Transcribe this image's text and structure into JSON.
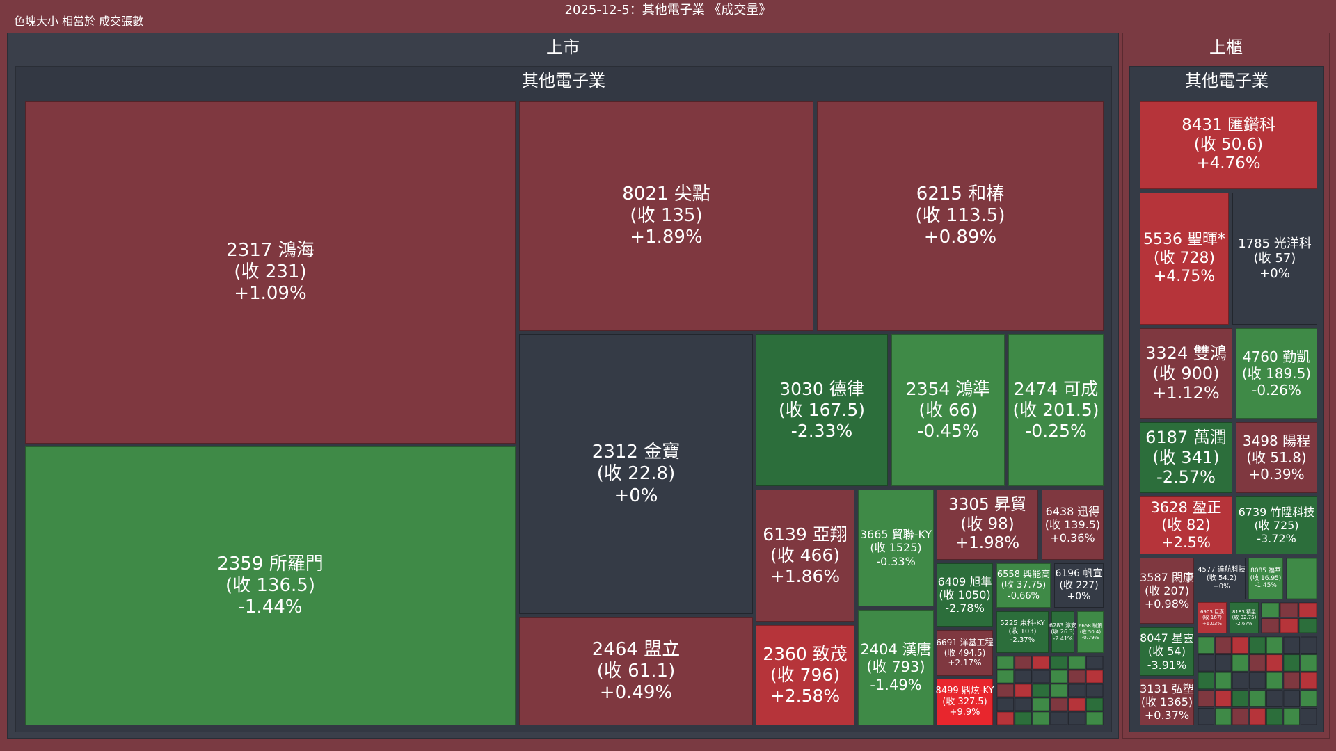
{
  "header": {
    "title": "2025-12-5：其他電子業 《成交量》",
    "size_note": "色塊大小 相當於 成交張數"
  },
  "colors": {
    "up": "#7f3840",
    "up_strong": "#b6343a",
    "up_max": "#e8262d",
    "down": "#2c6e3b",
    "down_light": "#3f8a47",
    "flat": "#353b46",
    "background": "#7a3a42",
    "market_panel": "#3a3f4a",
    "industry_panel": "#333843"
  },
  "markets": [
    {
      "name": "上市",
      "industry": "其他電子業"
    },
    {
      "name": "上櫃",
      "industry": "其他電子業"
    }
  ],
  "chart_data": {
    "type": "treemap",
    "title": "2025-12-5：其他電子業 《成交量》",
    "size_metric": "成交張數",
    "hierarchy": [
      "market",
      "industry",
      "stock"
    ],
    "groups": [
      {
        "market": "上市",
        "industry": "其他電子業",
        "stocks": [
          {
            "code": "2317",
            "name": "鴻海",
            "close": "231",
            "change": "+1.09%"
          },
          {
            "code": "2359",
            "name": "所羅門",
            "close": "136.5",
            "change": "-1.44%"
          },
          {
            "code": "8021",
            "name": "尖點",
            "close": "135",
            "change": "+1.89%"
          },
          {
            "code": "6215",
            "name": "和椿",
            "close": "113.5",
            "change": "+0.89%"
          },
          {
            "code": "2312",
            "name": "金寶",
            "close": "22.8",
            "change": "+0%"
          },
          {
            "code": "2464",
            "name": "盟立",
            "close": "61.1",
            "change": "+0.49%"
          },
          {
            "code": "3030",
            "name": "德律",
            "close": "167.5",
            "change": "-2.33%"
          },
          {
            "code": "2354",
            "name": "鴻準",
            "close": "66",
            "change": "-0.45%"
          },
          {
            "code": "2474",
            "name": "可成",
            "close": "201.5",
            "change": "-0.25%"
          },
          {
            "code": "6139",
            "name": "亞翔",
            "close": "466",
            "change": "+1.86%"
          },
          {
            "code": "2360",
            "name": "致茂",
            "close": "796",
            "change": "+2.58%"
          },
          {
            "code": "3665",
            "name": "貿聯-KY",
            "close": "1525",
            "change": "-0.33%"
          },
          {
            "code": "2404",
            "name": "漢唐",
            "close": "793",
            "change": "-1.49%"
          },
          {
            "code": "3305",
            "name": "昇貿",
            "close": "98",
            "change": "+1.98%"
          },
          {
            "code": "6438",
            "name": "迅得",
            "close": "139.5",
            "change": "+0.36%"
          },
          {
            "code": "6409",
            "name": "旭隼",
            "close": "1050",
            "change": "-2.78%"
          },
          {
            "code": "6558",
            "name": "興能高",
            "close": "37.75",
            "change": "-0.66%"
          },
          {
            "code": "6196",
            "name": "帆宣",
            "close": "227",
            "change": "+0%"
          },
          {
            "code": "5225",
            "name": "東科-KY",
            "close": "103",
            "change": "-2.37%"
          },
          {
            "code": "6283",
            "name": "淳安",
            "close": "26.3",
            "change": "-2.41%"
          },
          {
            "code": "6658",
            "name": "聯策",
            "close": "50.4",
            "change": "-0.79%"
          },
          {
            "code": "6691",
            "name": "洋基工程",
            "close": "494.5",
            "change": "+2.17%"
          },
          {
            "code": "8499",
            "name": "鼎炫-KY",
            "close": "327.5",
            "change": "+9.9%"
          }
        ]
      },
      {
        "market": "上櫃",
        "industry": "其他電子業",
        "stocks": [
          {
            "code": "8431",
            "name": "匯鑽科",
            "close": "50.6",
            "change": "+4.76%"
          },
          {
            "code": "5536",
            "name": "聖暉*",
            "close": "728",
            "change": "+4.75%"
          },
          {
            "code": "1785",
            "name": "光洋科",
            "close": "57",
            "change": "+0%"
          },
          {
            "code": "3324",
            "name": "雙鴻",
            "close": "900",
            "change": "+1.12%"
          },
          {
            "code": "4760",
            "name": "勤凱",
            "close": "189.5",
            "change": "-0.26%"
          },
          {
            "code": "6187",
            "name": "萬潤",
            "close": "341",
            "change": "-2.57%"
          },
          {
            "code": "3498",
            "name": "陽程",
            "close": "51.8",
            "change": "+0.39%"
          },
          {
            "code": "3628",
            "name": "盈正",
            "close": "82",
            "change": "+2.5%"
          },
          {
            "code": "6739",
            "name": "竹陞科技",
            "close": "725",
            "change": "-3.72%"
          },
          {
            "code": "3587",
            "name": "閎康",
            "close": "207",
            "change": "+0.98%"
          },
          {
            "code": "4577",
            "name": "達航科技",
            "close": "54.2",
            "change": "+0%"
          },
          {
            "code": "8085",
            "name": "福華",
            "close": "16.95",
            "change": "-1.45%"
          },
          {
            "code": "6903",
            "name": "巨漢",
            "close": "167",
            "change": "+6.03%"
          },
          {
            "code": "8183",
            "name": "精星",
            "close": "32.75",
            "change": "-2.67%"
          },
          {
            "code": "8047",
            "name": "星雲",
            "close": "54",
            "change": "-3.91%"
          },
          {
            "code": "3131",
            "name": "弘塑",
            "close": "1365",
            "change": "+0.37%"
          }
        ]
      }
    ]
  }
}
